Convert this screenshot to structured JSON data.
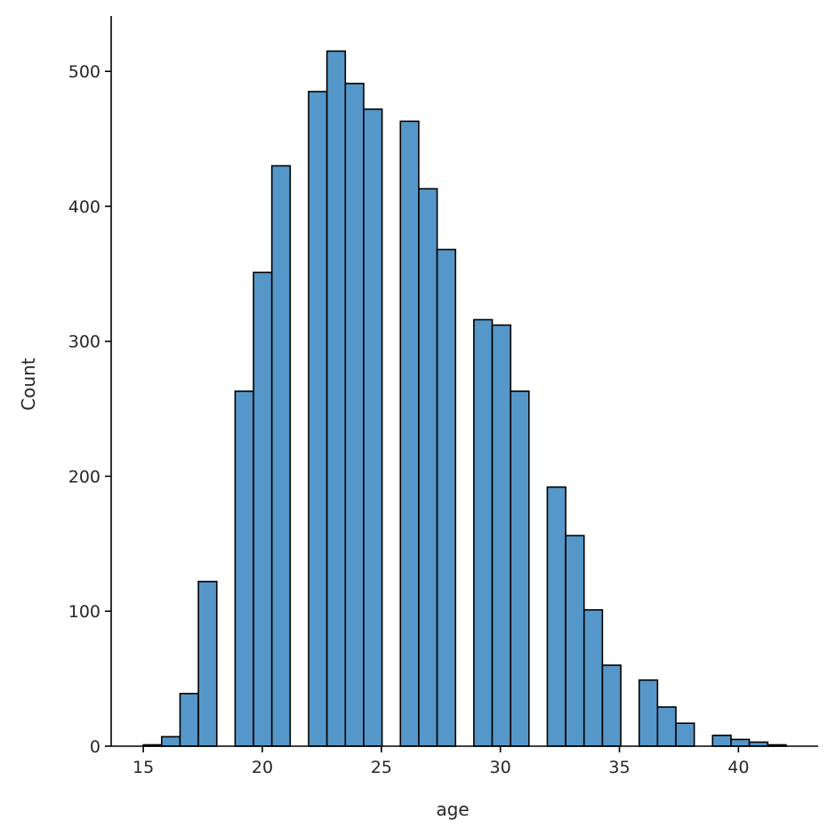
{
  "chart_data": {
    "type": "bar",
    "subtype": "histogram",
    "xlabel": "age",
    "ylabel": "Count",
    "xlim": [
      13.65,
      43.35
    ],
    "ylim": [
      0,
      541
    ],
    "x_ticks": [
      15,
      20,
      25,
      30,
      35,
      40
    ],
    "y_ticks": [
      0,
      100,
      200,
      300,
      400,
      500
    ],
    "bin_edges": [
      15,
      15.771,
      16.543,
      17.314,
      18.086,
      18.857,
      19.629,
      20.4,
      21.171,
      21.943,
      22.714,
      23.486,
      24.257,
      25.029,
      25.8,
      26.571,
      27.343,
      28.114,
      28.886,
      29.657,
      30.429,
      31.2,
      31.971,
      32.743,
      33.514,
      34.286,
      35.057,
      35.829,
      36.6,
      37.371,
      38.143,
      38.914,
      39.686,
      40.457,
      41.229,
      42
    ],
    "counts": [
      1,
      7,
      39,
      122,
      0,
      263,
      351,
      430,
      0,
      485,
      515,
      491,
      472,
      0,
      463,
      413,
      368,
      0,
      316,
      312,
      263,
      0,
      192,
      156,
      101,
      60,
      0,
      49,
      29,
      17,
      0,
      8,
      5,
      3,
      1
    ],
    "bar_color": "#5597c8",
    "edge_color": "#000000",
    "grid": false,
    "legend": "none"
  }
}
